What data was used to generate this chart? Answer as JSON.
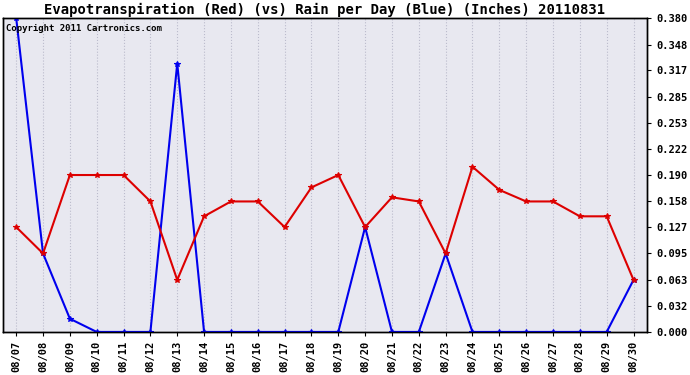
{
  "title": "Evapotranspiration (Red) (vs) Rain per Day (Blue) (Inches) 20110831",
  "copyright": "Copyright 2011 Cartronics.com",
  "dates": [
    "08/07",
    "08/08",
    "08/09",
    "08/10",
    "08/11",
    "08/12",
    "08/13",
    "08/14",
    "08/15",
    "08/16",
    "08/17",
    "08/18",
    "08/19",
    "08/20",
    "08/21",
    "08/22",
    "08/23",
    "08/24",
    "08/25",
    "08/26",
    "08/27",
    "08/28",
    "08/29",
    "08/30"
  ],
  "blue_rain": [
    0.38,
    0.095,
    0.016,
    0.0,
    0.0,
    0.0,
    0.325,
    0.0,
    0.0,
    0.0,
    0.0,
    0.0,
    0.0,
    0.127,
    0.0,
    0.0,
    0.095,
    0.0,
    0.0,
    0.0,
    0.0,
    0.0,
    0.0,
    0.063
  ],
  "red_et": [
    0.127,
    0.095,
    0.19,
    0.19,
    0.19,
    0.158,
    0.063,
    0.14,
    0.158,
    0.158,
    0.127,
    0.175,
    0.19,
    0.127,
    0.163,
    0.158,
    0.095,
    0.2,
    0.172,
    0.158,
    0.158,
    0.14,
    0.14,
    0.063
  ],
  "ylim": [
    0.0,
    0.38
  ],
  "yticks": [
    0.0,
    0.032,
    0.063,
    0.095,
    0.127,
    0.158,
    0.19,
    0.222,
    0.253,
    0.285,
    0.317,
    0.348,
    0.38
  ],
  "blue_color": "#0000EE",
  "red_color": "#DD0000",
  "bg_color": "#FFFFFF",
  "plot_bg_color": "#E8E8F0",
  "grid_color": "#BBBBCC",
  "title_fontsize": 10,
  "copyright_fontsize": 6.5,
  "tick_fontsize": 7.5
}
